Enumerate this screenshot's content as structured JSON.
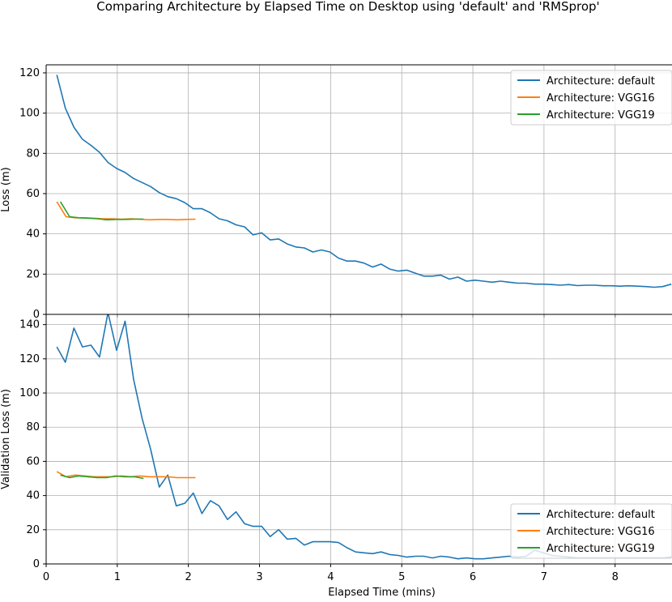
{
  "figure": {
    "title": "Comparing Architecture by Elapsed Time on Desktop using 'default' and 'RMSprop'"
  },
  "colors": {
    "default": "#1f77b4",
    "VGG16": "#ff7f0e",
    "VGG19": "#2ca02c",
    "grid": "#b0b0b0"
  },
  "chart_data": [
    {
      "type": "line",
      "title": "",
      "xlabel": "",
      "ylabel": "Loss (m)",
      "xlim": [
        0,
        8.8
      ],
      "ylim": [
        0,
        124
      ],
      "xticks": [
        0,
        1,
        2,
        3,
        4,
        5,
        6,
        7,
        8
      ],
      "yticks": [
        0,
        20,
        40,
        60,
        80,
        100,
        120
      ],
      "show_xtick_labels": false,
      "grid": true,
      "legend_position": "top-right",
      "series": [
        {
          "name": "Architecture: default",
          "color_key": "default",
          "x": [
            0.15,
            0.27,
            0.39,
            0.51,
            0.63,
            0.75,
            0.87,
            0.99,
            1.11,
            1.23,
            1.35,
            1.47,
            1.59,
            1.71,
            1.83,
            1.95,
            2.07,
            2.19,
            2.31,
            2.43,
            2.55,
            2.67,
            2.79,
            2.91,
            3.03,
            3.15,
            3.27,
            3.39,
            3.51,
            3.63,
            3.75,
            3.87,
            3.99,
            4.11,
            4.23,
            4.35,
            4.47,
            4.59,
            4.71,
            4.83,
            4.95,
            5.07,
            5.19,
            5.31,
            5.43,
            5.55,
            5.67,
            5.79,
            5.91,
            6.03,
            6.15,
            6.27,
            6.39,
            6.51,
            6.63,
            6.75,
            6.87,
            6.99,
            7.11,
            7.23,
            7.35,
            7.47,
            7.59,
            7.71,
            7.83,
            7.95,
            8.07,
            8.19,
            8.31,
            8.43,
            8.55,
            8.67,
            8.79
          ],
          "y": [
            119,
            102.5,
            93,
            87,
            84,
            80.5,
            75.5,
            72.5,
            70.5,
            67.5,
            65.5,
            63.5,
            60.5,
            58.5,
            57.5,
            55.5,
            52.5,
            52.5,
            50.5,
            47.5,
            46.5,
            44.5,
            43.5,
            39.5,
            40.5,
            37,
            37.5,
            35,
            33.5,
            33,
            31,
            32,
            31,
            28,
            26.5,
            26.5,
            25.5,
            23.5,
            25,
            22.5,
            21.5,
            22,
            20.5,
            19,
            19,
            19.5,
            17.5,
            18.5,
            16.5,
            17,
            16.5,
            16,
            16.5,
            16,
            15.5,
            15.5,
            15,
            15,
            14.8,
            14.5,
            14.8,
            14.3,
            14.5,
            14.5,
            14.2,
            14.2,
            14,
            14.2,
            14,
            13.8,
            13.5,
            13.8,
            15
          ]
        },
        {
          "name": "Architecture: VGG16",
          "color_key": "VGG16",
          "x": [
            0.15,
            0.28,
            0.41,
            0.54,
            0.67,
            0.8,
            0.93,
            1.06,
            1.19,
            1.32,
            1.45,
            1.58,
            1.71,
            1.84,
            1.97,
            2.1
          ],
          "y": [
            56,
            48.5,
            48,
            48,
            47.8,
            47.5,
            47.5,
            47.3,
            47.5,
            47.3,
            47,
            47.2,
            47.2,
            47,
            47.2,
            47.3
          ]
        },
        {
          "name": "Architecture: VGG19",
          "color_key": "VGG19",
          "x": [
            0.2,
            0.33,
            0.46,
            0.59,
            0.72,
            0.85,
            0.98,
            1.11,
            1.24,
            1.37
          ],
          "y": [
            56,
            48.5,
            48,
            47.8,
            47.5,
            47,
            47.2,
            47.2,
            47.3,
            47.3
          ]
        }
      ]
    },
    {
      "type": "line",
      "title": "",
      "xlabel": "Elapsed Time (mins)",
      "ylabel": "Validation Loss (m)",
      "xlim": [
        0,
        8.8
      ],
      "ylim": [
        0,
        146
      ],
      "xticks": [
        0,
        1,
        2,
        3,
        4,
        5,
        6,
        7,
        8
      ],
      "yticks": [
        0,
        20,
        40,
        60,
        80,
        100,
        120,
        140
      ],
      "show_xtick_labels": true,
      "grid": true,
      "legend_position": "bottom-right",
      "series": [
        {
          "name": "Architecture: default",
          "color_key": "default",
          "x": [
            0.15,
            0.27,
            0.39,
            0.51,
            0.63,
            0.75,
            0.87,
            0.99,
            1.11,
            1.23,
            1.35,
            1.47,
            1.59,
            1.71,
            1.83,
            1.95,
            2.07,
            2.19,
            2.31,
            2.43,
            2.55,
            2.67,
            2.79,
            2.91,
            3.03,
            3.15,
            3.27,
            3.39,
            3.51,
            3.63,
            3.75,
            3.87,
            3.99,
            4.11,
            4.23,
            4.35,
            4.47,
            4.59,
            4.71,
            4.83,
            4.95,
            5.07,
            5.19,
            5.31,
            5.43,
            5.55,
            5.67,
            5.79,
            5.91,
            6.03,
            6.15,
            6.27,
            6.39,
            6.51,
            6.63,
            6.75,
            6.87,
            6.99,
            7.11,
            7.23,
            7.35,
            7.47,
            7.59,
            7.71,
            7.83,
            7.95,
            8.07,
            8.19,
            8.31,
            8.43,
            8.55,
            8.67,
            8.79
          ],
          "y": [
            127,
            118,
            138,
            127,
            128,
            121,
            147,
            125,
            142,
            108,
            85,
            67,
            45,
            52,
            34,
            35.5,
            41.5,
            29.5,
            37,
            34,
            26,
            30.5,
            23.5,
            22,
            22,
            16,
            20,
            14.5,
            15,
            11,
            13,
            13,
            13,
            12.5,
            9.5,
            7,
            6.5,
            6,
            7,
            5.5,
            5,
            4,
            4.5,
            4.5,
            3.5,
            4.5,
            4,
            3,
            3.5,
            3,
            3,
            3.5,
            4,
            4.5,
            4,
            4.5,
            8,
            6.5,
            5,
            4.5,
            4,
            3.5,
            3.5,
            3.5,
            3.5,
            3.5,
            3.5,
            3.5,
            3.5,
            3.5,
            3.5,
            3.5,
            4
          ]
        },
        {
          "name": "Architecture: VGG16",
          "color_key": "VGG16",
          "x": [
            0.15,
            0.28,
            0.41,
            0.54,
            0.67,
            0.8,
            0.93,
            1.06,
            1.19,
            1.32,
            1.45,
            1.58,
            1.71,
            1.84,
            1.97,
            2.1
          ],
          "y": [
            54,
            51,
            52,
            51.5,
            51,
            51,
            51,
            51.5,
            51,
            51.5,
            51,
            51,
            51,
            50.5,
            50.5,
            50.5
          ]
        },
        {
          "name": "Architecture: VGG19",
          "color_key": "VGG19",
          "x": [
            0.2,
            0.33,
            0.46,
            0.59,
            0.72,
            0.85,
            0.98,
            1.11,
            1.24,
            1.37
          ],
          "y": [
            52,
            50.5,
            51.5,
            51,
            50.5,
            50.5,
            51.5,
            51,
            51,
            50
          ]
        }
      ]
    }
  ]
}
